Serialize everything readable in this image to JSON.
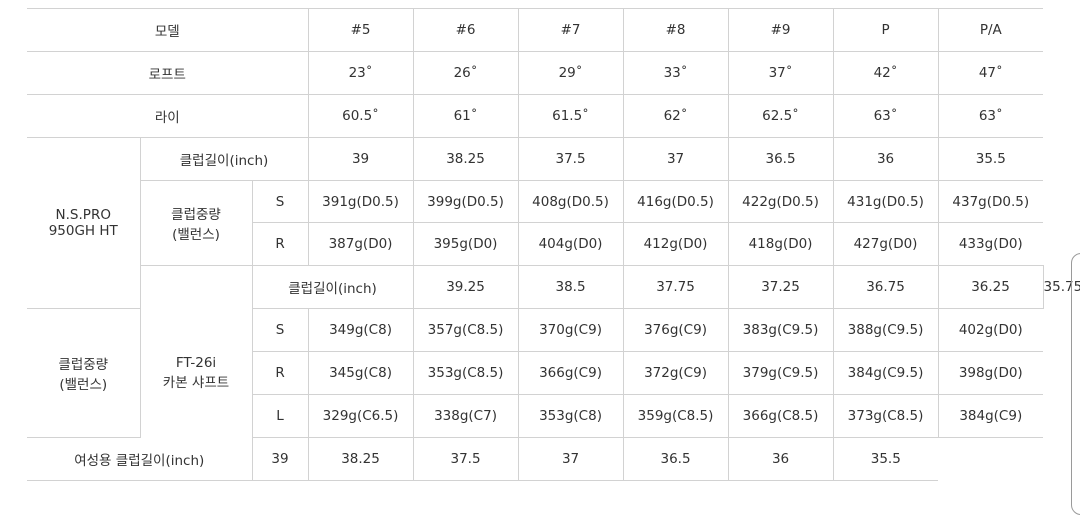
{
  "header": {
    "label": "모델",
    "columns": [
      "#5",
      "#6",
      "#7",
      "#8",
      "#9",
      "P",
      "P/A"
    ]
  },
  "loft": {
    "label": "로프트",
    "values": [
      "23˚",
      "26˚",
      "29˚",
      "33˚",
      "37˚",
      "42˚",
      "47˚"
    ]
  },
  "lie": {
    "label": "라이",
    "values": [
      "60.5˚",
      "61˚",
      "61.5˚",
      "62˚",
      "62.5˚",
      "63˚",
      "63˚"
    ]
  },
  "nspro": {
    "name_line1": "N.S.PRO",
    "name_line2": "950GH HT",
    "length_label": "클럽길이(inch)",
    "length": [
      "39",
      "38.25",
      "37.5",
      "37",
      "36.5",
      "36",
      "35.5"
    ],
    "weight_label_line1": "클럽중량",
    "weight_label_line2": "(밸런스)",
    "flex": [
      {
        "label": "S",
        "values": [
          "391g(D0.5)",
          "399g(D0.5)",
          "408g(D0.5)",
          "416g(D0.5)",
          "422g(D0.5)",
          "431g(D0.5)",
          "437g(D0.5)"
        ]
      },
      {
        "label": "R",
        "values": [
          "387g(D0)",
          "395g(D0)",
          "404g(D0)",
          "412g(D0)",
          "418g(D0)",
          "427g(D0)",
          "433g(D0)"
        ]
      }
    ]
  },
  "ft26i": {
    "name_line1": "FT-26i",
    "name_line2": "카본 샤프트",
    "length_label": "클럽길이(inch)",
    "length": [
      "39.25",
      "38.5",
      "37.75",
      "37.25",
      "36.75",
      "36.25",
      "35.75"
    ],
    "weight_label_line1": "클럽중량",
    "weight_label_line2": "(밸런스)",
    "flex": [
      {
        "label": "S",
        "values": [
          "349g(C8)",
          "357g(C8.5)",
          "370g(C9)",
          "376g(C9)",
          "383g(C9.5)",
          "388g(C9.5)",
          "402g(D0)"
        ]
      },
      {
        "label": "R",
        "values": [
          "345g(C8)",
          "353g(C8.5)",
          "366g(C9)",
          "372g(C9)",
          "379g(C9.5)",
          "384g(C9.5)",
          "398g(D0)"
        ]
      },
      {
        "label": "L",
        "values": [
          "329g(C6.5)",
          "338g(C7)",
          "353g(C8)",
          "359g(C8.5)",
          "366g(C8.5)",
          "373g(C8.5)",
          "384g(C9)"
        ]
      }
    ],
    "women_length_label": "여성용 클럽길이(inch)",
    "women_length": [
      "39",
      "38.25",
      "37.5",
      "37",
      "36.5",
      "36",
      "35.5"
    ]
  }
}
